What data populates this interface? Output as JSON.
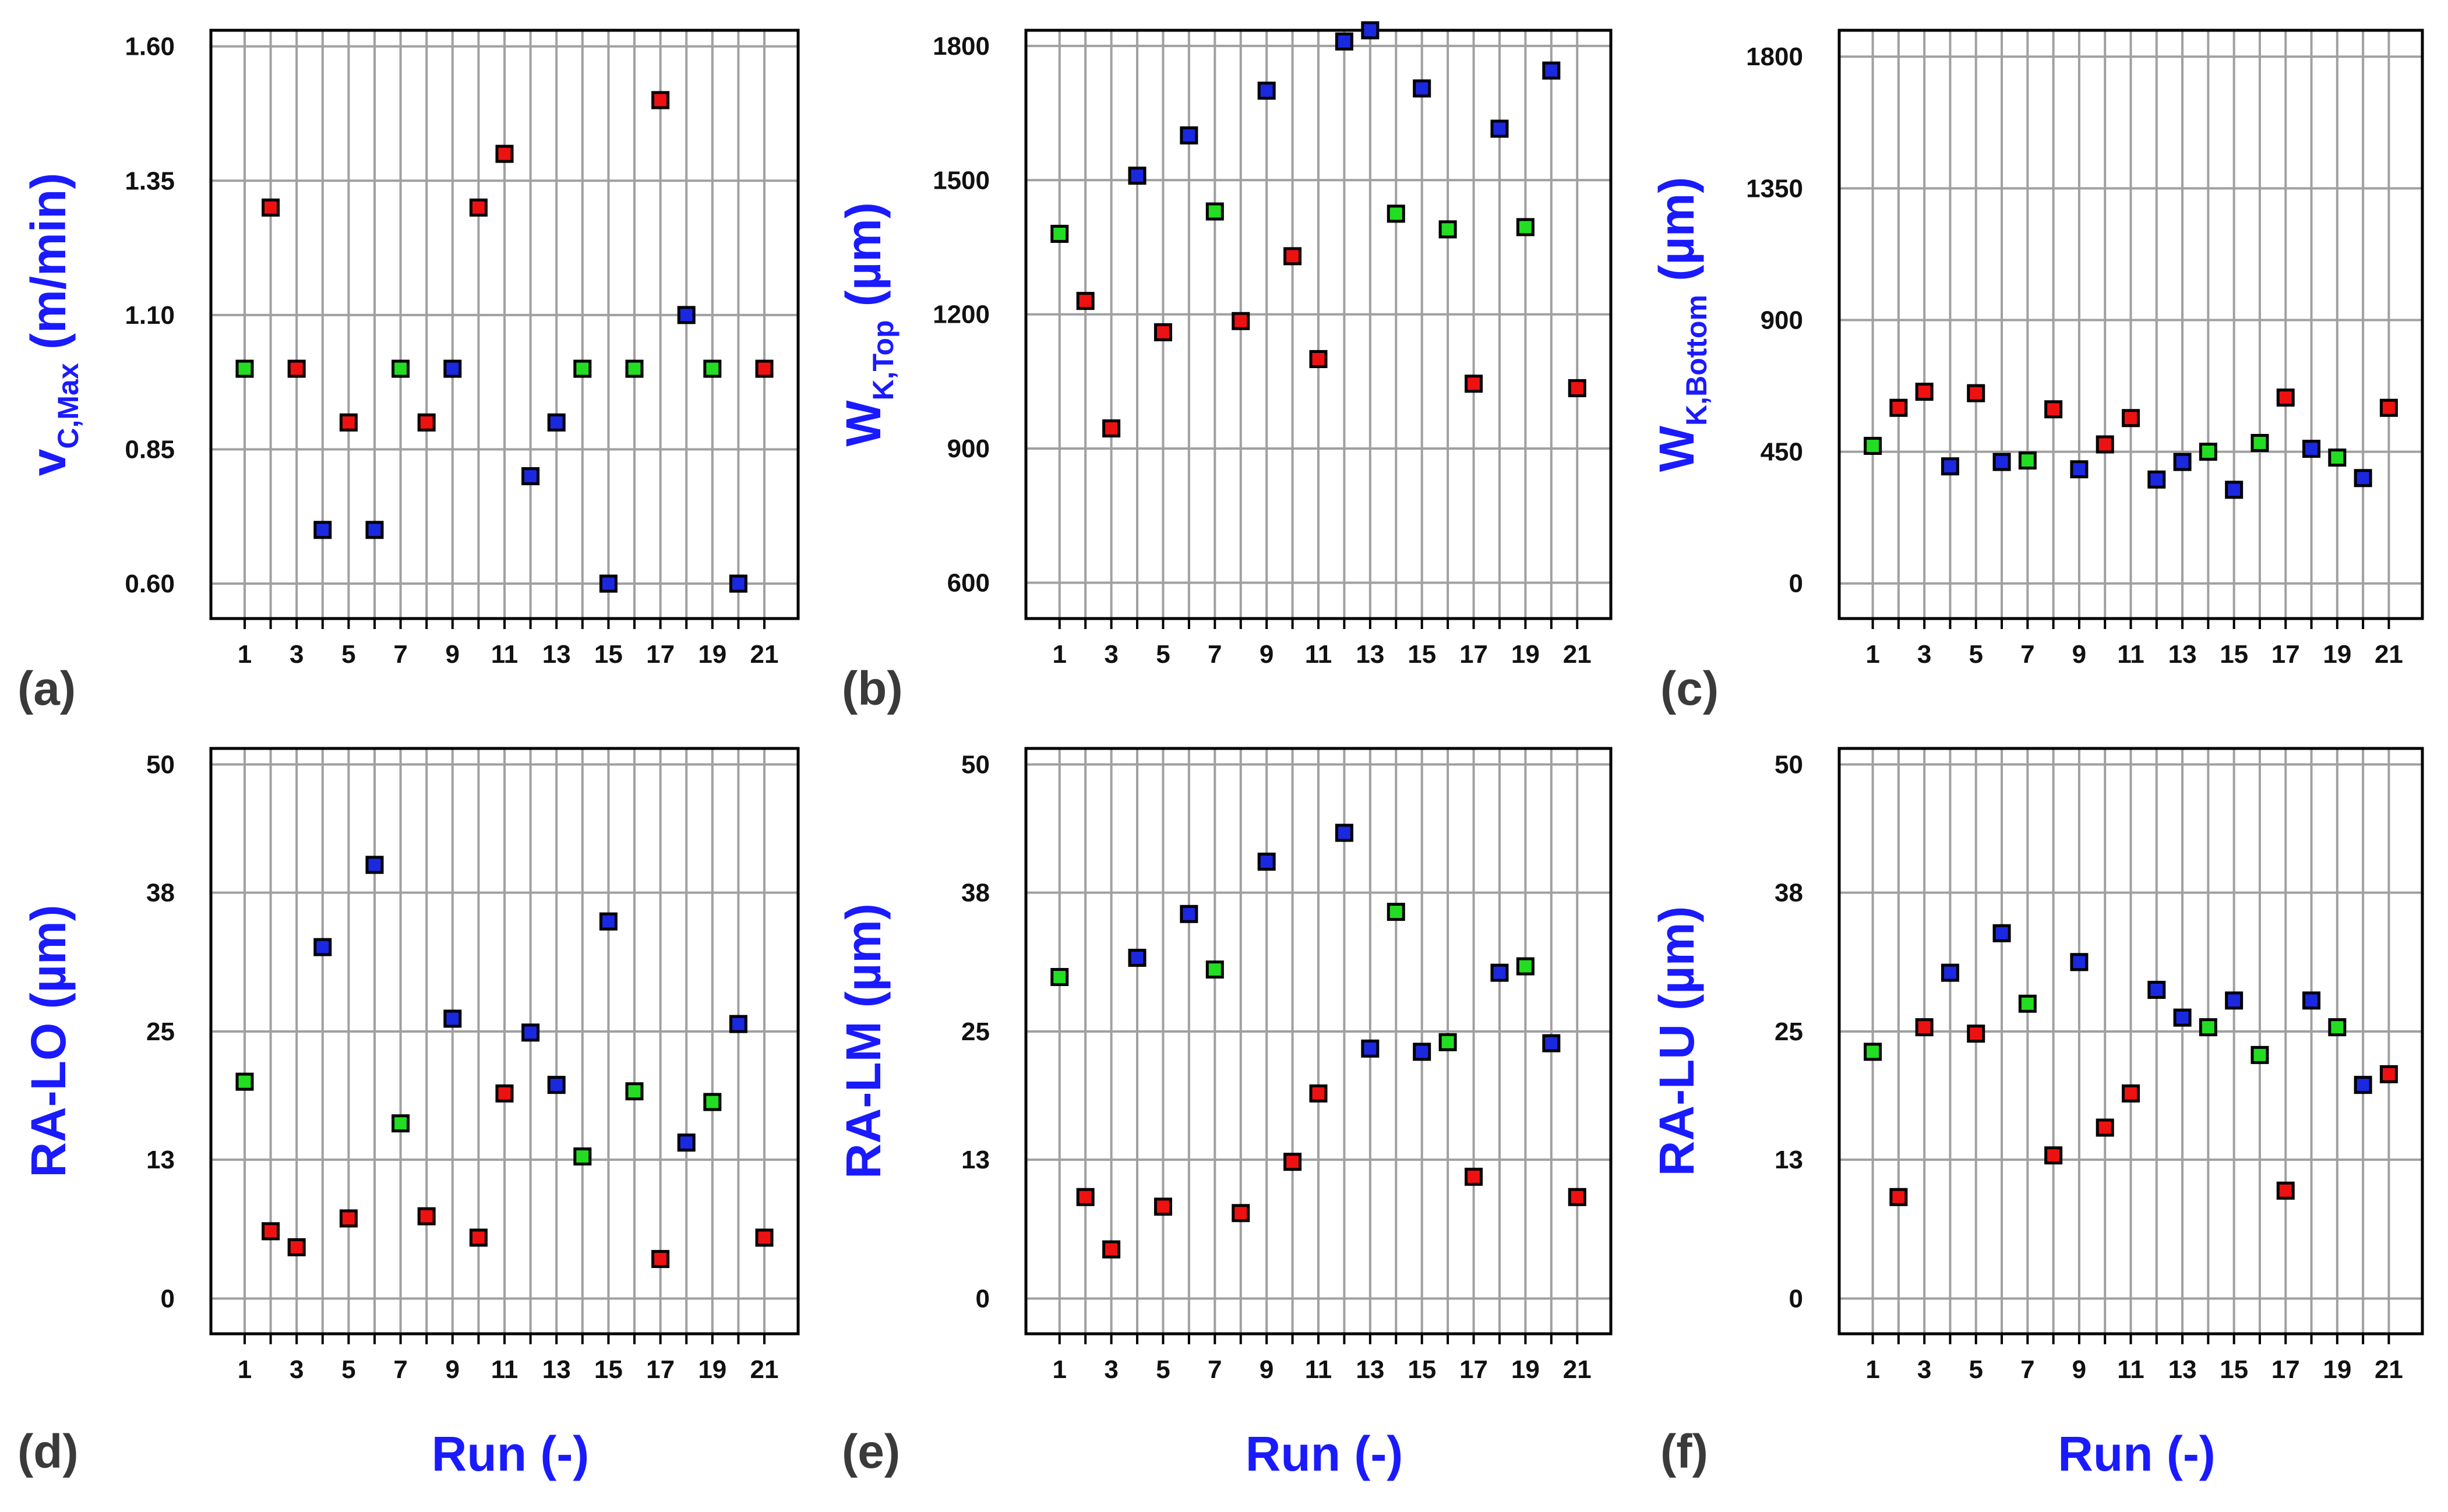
{
  "figure": {
    "colors": {
      "green": "#22dd22",
      "red": "#ee1111",
      "blue": "#1a28e0",
      "label_blue": "#1a1aff",
      "grid": "#a0a0a0",
      "axis": "#000000"
    },
    "xlabel_text": "Run (-)",
    "panel_labels": [
      "(a)",
      "(b)",
      "(c)",
      "(d)",
      "(e)",
      "(f)"
    ]
  },
  "chart_data": [
    {
      "id": "a",
      "type": "scatter",
      "ylabel_main": "v",
      "ylabel_sub": "C,Max",
      "ylabel_tail": "(m/min)",
      "xlabel": "",
      "yticks": [
        "0.60",
        "0.85",
        "1.10",
        "1.35",
        "1.60"
      ],
      "ylim": [
        0.535,
        1.63
      ],
      "xlim": [
        -0.3,
        22.3
      ],
      "xticks": [
        "1",
        "3",
        "5",
        "7",
        "9",
        "11",
        "13",
        "15",
        "17",
        "19",
        "21"
      ],
      "x": [
        1,
        2,
        3,
        4,
        5,
        6,
        7,
        8,
        9,
        10,
        11,
        12,
        13,
        14,
        15,
        16,
        17,
        18,
        19,
        20,
        21
      ],
      "y": [
        1.0,
        1.3,
        1.0,
        0.7,
        0.9,
        0.7,
        1.0,
        0.9,
        1.0,
        1.3,
        1.4,
        0.8,
        0.9,
        1.0,
        0.6,
        1.0,
        1.5,
        1.1,
        1.0,
        0.6,
        1.0
      ],
      "color": [
        "green",
        "red",
        "red",
        "blue",
        "red",
        "blue",
        "green",
        "red",
        "blue",
        "red",
        "red",
        "blue",
        "blue",
        "green",
        "blue",
        "green",
        "red",
        "blue",
        "green",
        "blue",
        "red"
      ]
    },
    {
      "id": "b",
      "type": "scatter",
      "ylabel_main": "W",
      "ylabel_sub": "K,Top",
      "ylabel_tail": "(µm)",
      "xlabel": "",
      "yticks": [
        "600",
        "900",
        "1200",
        "1500",
        "1800"
      ],
      "ylim": [
        520,
        1835
      ],
      "xlim": [
        -0.3,
        22.3
      ],
      "xticks": [
        "1",
        "3",
        "5",
        "7",
        "9",
        "11",
        "13",
        "15",
        "17",
        "19",
        "21"
      ],
      "x": [
        1,
        2,
        3,
        4,
        5,
        6,
        7,
        8,
        9,
        10,
        11,
        12,
        13,
        14,
        15,
        16,
        17,
        18,
        19,
        20,
        21
      ],
      "y": [
        1380,
        1230,
        945,
        1510,
        1160,
        1600,
        1430,
        1185,
        1700,
        1330,
        1100,
        1810,
        1835,
        1425,
        1705,
        1390,
        1045,
        1615,
        1395,
        1745,
        1035
      ],
      "color": [
        "green",
        "red",
        "red",
        "blue",
        "red",
        "blue",
        "green",
        "red",
        "blue",
        "red",
        "red",
        "blue",
        "blue",
        "green",
        "blue",
        "green",
        "red",
        "blue",
        "green",
        "blue",
        "red"
      ]
    },
    {
      "id": "c",
      "type": "scatter",
      "ylabel_main": "W",
      "ylabel_sub": "K,Bottom",
      "ylabel_tail": "(µm)",
      "xlabel": "",
      "yticks": [
        "0",
        "450",
        "900",
        "1350",
        "1800"
      ],
      "ylim": [
        -120,
        1890
      ],
      "xlim": [
        -0.3,
        22.3
      ],
      "xticks": [
        "1",
        "3",
        "5",
        "7",
        "9",
        "11",
        "13",
        "15",
        "17",
        "19",
        "21"
      ],
      "x": [
        1,
        2,
        3,
        4,
        5,
        6,
        7,
        8,
        9,
        10,
        11,
        12,
        13,
        14,
        15,
        16,
        17,
        18,
        19,
        20,
        21
      ],
      "y": [
        470,
        600,
        655,
        400,
        650,
        415,
        420,
        595,
        390,
        475,
        565,
        355,
        415,
        450,
        320,
        480,
        635,
        460,
        430,
        360,
        600
      ],
      "color": [
        "green",
        "red",
        "red",
        "blue",
        "red",
        "blue",
        "green",
        "red",
        "blue",
        "red",
        "red",
        "blue",
        "blue",
        "green",
        "blue",
        "green",
        "red",
        "blue",
        "green",
        "blue",
        "red"
      ]
    },
    {
      "id": "d",
      "type": "scatter",
      "ylabel_main": "RA-LO (µm)",
      "ylabel_sub": "",
      "ylabel_tail": "",
      "xlabel": "Run (-)",
      "yticks": [
        "0",
        "13",
        "25",
        "38",
        "50"
      ],
      "ylim": [
        -3.3,
        51.5
      ],
      "xlim": [
        -0.3,
        22.3
      ],
      "xticks": [
        "1",
        "3",
        "5",
        "7",
        "9",
        "11",
        "13",
        "15",
        "17",
        "19",
        "21"
      ],
      "x": [
        1,
        2,
        3,
        4,
        5,
        6,
        7,
        8,
        9,
        10,
        11,
        12,
        13,
        14,
        15,
        16,
        17,
        18,
        19,
        20,
        21
      ],
      "y": [
        20.3,
        6.3,
        4.8,
        32.9,
        7.5,
        40.6,
        16.4,
        7.7,
        26.2,
        5.7,
        19.2,
        24.9,
        20.0,
        13.3,
        35.3,
        19.4,
        3.7,
        14.6,
        18.4,
        25.7,
        5.7
      ],
      "color": [
        "green",
        "red",
        "red",
        "blue",
        "red",
        "blue",
        "green",
        "red",
        "blue",
        "red",
        "red",
        "blue",
        "blue",
        "green",
        "blue",
        "green",
        "red",
        "blue",
        "green",
        "blue",
        "red"
      ]
    },
    {
      "id": "e",
      "type": "scatter",
      "ylabel_main": "RA-LM (µm)",
      "ylabel_sub": "",
      "ylabel_tail": "",
      "xlabel": "Run (-)",
      "yticks": [
        "0",
        "13",
        "25",
        "38",
        "50"
      ],
      "ylim": [
        -3.3,
        51.5
      ],
      "xlim": [
        -0.3,
        22.3
      ],
      "xticks": [
        "1",
        "3",
        "5",
        "7",
        "9",
        "11",
        "13",
        "15",
        "17",
        "19",
        "21"
      ],
      "x": [
        1,
        2,
        3,
        4,
        5,
        6,
        7,
        8,
        9,
        10,
        11,
        12,
        13,
        14,
        15,
        16,
        17,
        18,
        19,
        20,
        21
      ],
      "y": [
        30.1,
        9.5,
        4.6,
        31.9,
        8.6,
        36.0,
        30.8,
        8.0,
        40.9,
        12.8,
        19.2,
        43.6,
        23.4,
        36.2,
        23.1,
        24.0,
        11.4,
        30.5,
        31.1,
        23.9,
        9.5
      ],
      "color": [
        "green",
        "red",
        "red",
        "blue",
        "red",
        "blue",
        "green",
        "red",
        "blue",
        "red",
        "red",
        "blue",
        "blue",
        "green",
        "blue",
        "green",
        "red",
        "blue",
        "green",
        "blue",
        "red"
      ]
    },
    {
      "id": "f",
      "type": "scatter",
      "ylabel_main": "RA-LU (µm)",
      "ylabel_sub": "",
      "ylabel_tail": "",
      "xlabel": "Run (-)",
      "yticks": [
        "0",
        "13",
        "25",
        "38",
        "50"
      ],
      "ylim": [
        -3.3,
        51.5
      ],
      "xlim": [
        -0.3,
        22.3
      ],
      "xticks": [
        "1",
        "3",
        "5",
        "7",
        "9",
        "11",
        "13",
        "15",
        "17",
        "19",
        "21"
      ],
      "x": [
        1,
        2,
        3,
        4,
        5,
        6,
        7,
        8,
        9,
        10,
        11,
        12,
        13,
        14,
        15,
        16,
        17,
        18,
        19,
        20,
        21
      ],
      "y": [
        23.1,
        9.5,
        25.4,
        30.5,
        24.8,
        34.2,
        27.6,
        13.4,
        31.5,
        16.0,
        19.2,
        28.9,
        26.3,
        25.4,
        27.9,
        22.8,
        10.1,
        27.9,
        25.4,
        20.0,
        21.0
      ],
      "color": [
        "green",
        "red",
        "red",
        "blue",
        "red",
        "blue",
        "green",
        "red",
        "blue",
        "red",
        "red",
        "blue",
        "blue",
        "green",
        "blue",
        "green",
        "red",
        "blue",
        "green",
        "blue",
        "red"
      ]
    }
  ]
}
